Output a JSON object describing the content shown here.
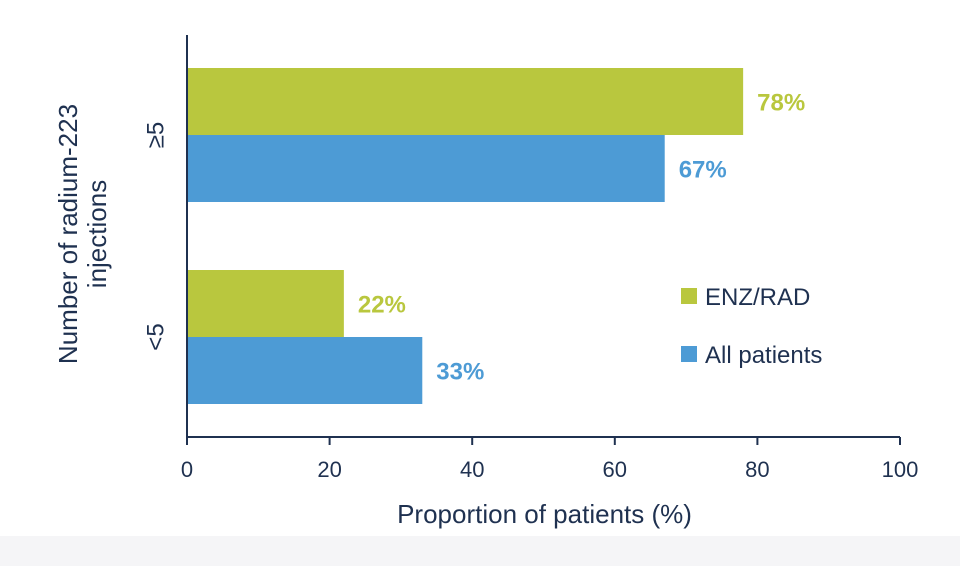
{
  "chart_data": {
    "type": "bar",
    "orientation": "horizontal",
    "categories": [
      "≥5",
      "<5"
    ],
    "series": [
      {
        "name": "ENZ/RAD",
        "values": [
          78,
          22
        ],
        "labels": [
          "78%",
          "22%"
        ],
        "color": "#b9c73e"
      },
      {
        "name": "All patients",
        "values": [
          67,
          33
        ],
        "labels": [
          "67%",
          "33%"
        ],
        "color": "#4d9bd5"
      }
    ],
    "xlabel": "Proportion of patients (%)",
    "ylabel": "Number of radium-223 injections",
    "xlim": [
      0,
      100
    ],
    "xticks": [
      "0",
      "20",
      "40",
      "60",
      "80",
      "100"
    ],
    "grid": false,
    "legend": "inside right",
    "legend_order": [
      0,
      1
    ]
  },
  "colors": {
    "axis": "#1f3150",
    "text": "#1f3150",
    "enz_rad": "#b9c73e",
    "all_patients": "#4d9bd5"
  }
}
